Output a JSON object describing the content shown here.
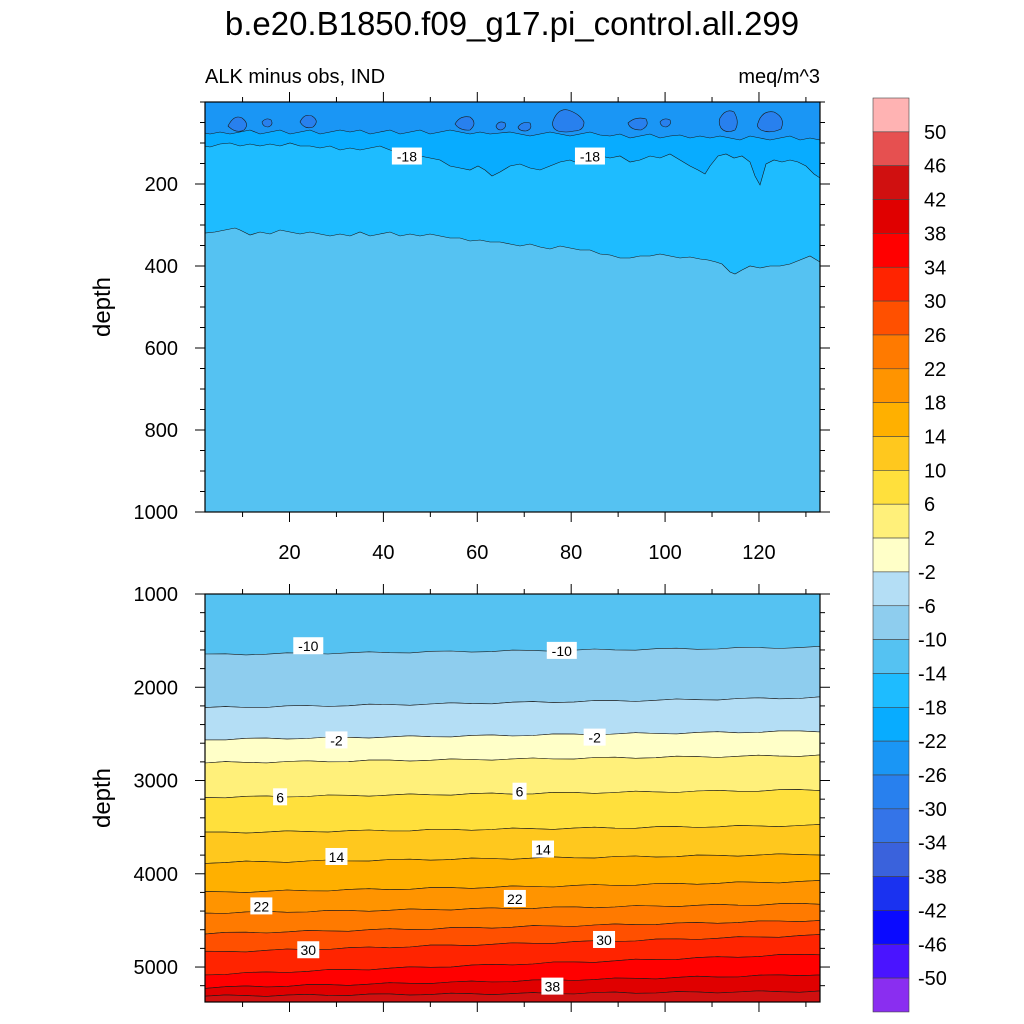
{
  "title": "b.e20.B1850.f09_g17.pi_control.all.299",
  "chart_data": {
    "type": "contour",
    "subtitle_left": "ALK minus obs, IND",
    "subtitle_right": "meq/m^3",
    "ylabel": "depth",
    "xlim": [
      2,
      133
    ],
    "x_ticks": [
      20,
      40,
      60,
      80,
      100,
      120
    ],
    "x_tick_labels": [
      "20",
      "40",
      "60",
      "80",
      "100",
      "120"
    ],
    "colorbar": {
      "labels": [
        "50",
        "46",
        "42",
        "38",
        "34",
        "30",
        "26",
        "22",
        "18",
        "14",
        "10",
        "6",
        "2",
        "-2",
        "-6",
        "-10",
        "-14",
        "-18",
        "-22",
        "-26",
        "-30",
        "-34",
        "-38",
        "-42",
        "-46",
        "-50"
      ],
      "colors": [
        "#ffb3b3",
        "#e65050",
        "#d01010",
        "#e00000",
        "#ff0000",
        "#ff2400",
        "#ff5000",
        "#ff7a00",
        "#ff9400",
        "#ffb000",
        "#ffc81e",
        "#ffe03c",
        "#fff07a",
        "#ffffc8",
        "#b4def5",
        "#8ecdee",
        "#55c2f2",
        "#1ebcff",
        "#08acff",
        "#1a96f5",
        "#2880ee",
        "#3474e8",
        "#3a62dc",
        "#1a32f0",
        "#0a0aff",
        "#4a14ff",
        "#8a2ef0"
      ]
    },
    "panels": [
      {
        "name": "upper",
        "ylim": [
          0,
          1000
        ],
        "y_reversed": true,
        "y_ticks": [
          200,
          400,
          600,
          800,
          1000
        ],
        "y_tick_labels": [
          "200",
          "400",
          "600",
          "800",
          "1000"
        ],
        "x_labels_shown": true,
        "contour_labels": [
          {
            "text": "-18",
            "x": 45,
            "y": 133
          },
          {
            "text": "-18",
            "x": 84,
            "y": 133
          }
        ]
      },
      {
        "name": "lower",
        "ylim": [
          1000,
          5375
        ],
        "y_reversed": true,
        "y_ticks": [
          1000,
          2000,
          3000,
          4000,
          5000
        ],
        "y_tick_labels": [
          "1000",
          "2000",
          "3000",
          "4000",
          "5000"
        ],
        "x_labels_shown": false,
        "contour_labels": [
          {
            "text": "-10",
            "x": 24,
            "y": 1560
          },
          {
            "text": "-10",
            "x": 78,
            "y": 1610
          },
          {
            "text": "-2",
            "x": 30,
            "y": 2570
          },
          {
            "text": "-2",
            "x": 85,
            "y": 2540
          },
          {
            "text": "6",
            "x": 18,
            "y": 3180
          },
          {
            "text": "6",
            "x": 69,
            "y": 3120
          },
          {
            "text": "14",
            "x": 30,
            "y": 3820
          },
          {
            "text": "14",
            "x": 74,
            "y": 3740
          },
          {
            "text": "22",
            "x": 14,
            "y": 4350
          },
          {
            "text": "22",
            "x": 68,
            "y": 4270
          },
          {
            "text": "30",
            "x": 24,
            "y": 4820
          },
          {
            "text": "30",
            "x": 87,
            "y": 4710
          },
          {
            "text": "38",
            "x": 76,
            "y": 5210
          }
        ]
      }
    ]
  }
}
